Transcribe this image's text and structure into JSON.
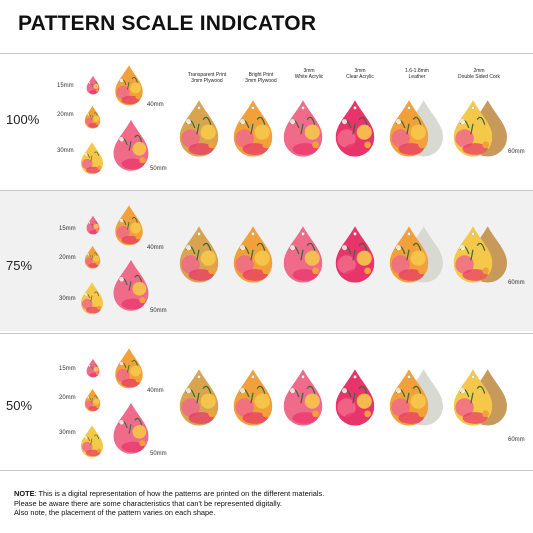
{
  "title": "PATTERN SCALE INDICATOR",
  "sections": [
    {
      "percent": "100%"
    },
    {
      "percent": "75%"
    },
    {
      "percent": "50%"
    }
  ],
  "size_labels": {
    "s15": "15mm",
    "s20": "20mm",
    "s30": "30mm",
    "s40": "40mm",
    "s50": "50mm",
    "s60": "60mm"
  },
  "materials": [
    {
      "label": "Transparent Print\n3mm Plywood"
    },
    {
      "label": "Bright Print\n3mm Plywood"
    },
    {
      "label": "3mm\nWhite Acrylic"
    },
    {
      "label": "3mm\nClear Acrylic"
    },
    {
      "label": "1.6-1.8mm\nLeather"
    },
    {
      "label": "2mm\nDouble Sided Cork"
    }
  ],
  "note": {
    "prefix": "NOTE",
    "line1": ": This is a digital representation of how the patterns are printed on the different materials.",
    "line2": "Please be aware there are some characteristics that can't be represented digitally.",
    "line3": "Also note, the placement of the pattern varies on each shape."
  },
  "colors": {
    "orange": "#f2a13a",
    "yellow": "#f6c84a",
    "pink": "#f06a8a",
    "hotpink": "#e8336b",
    "plywood": "#d9a44f",
    "leather": "#d9d9d3",
    "cork": "#c79a5c"
  }
}
